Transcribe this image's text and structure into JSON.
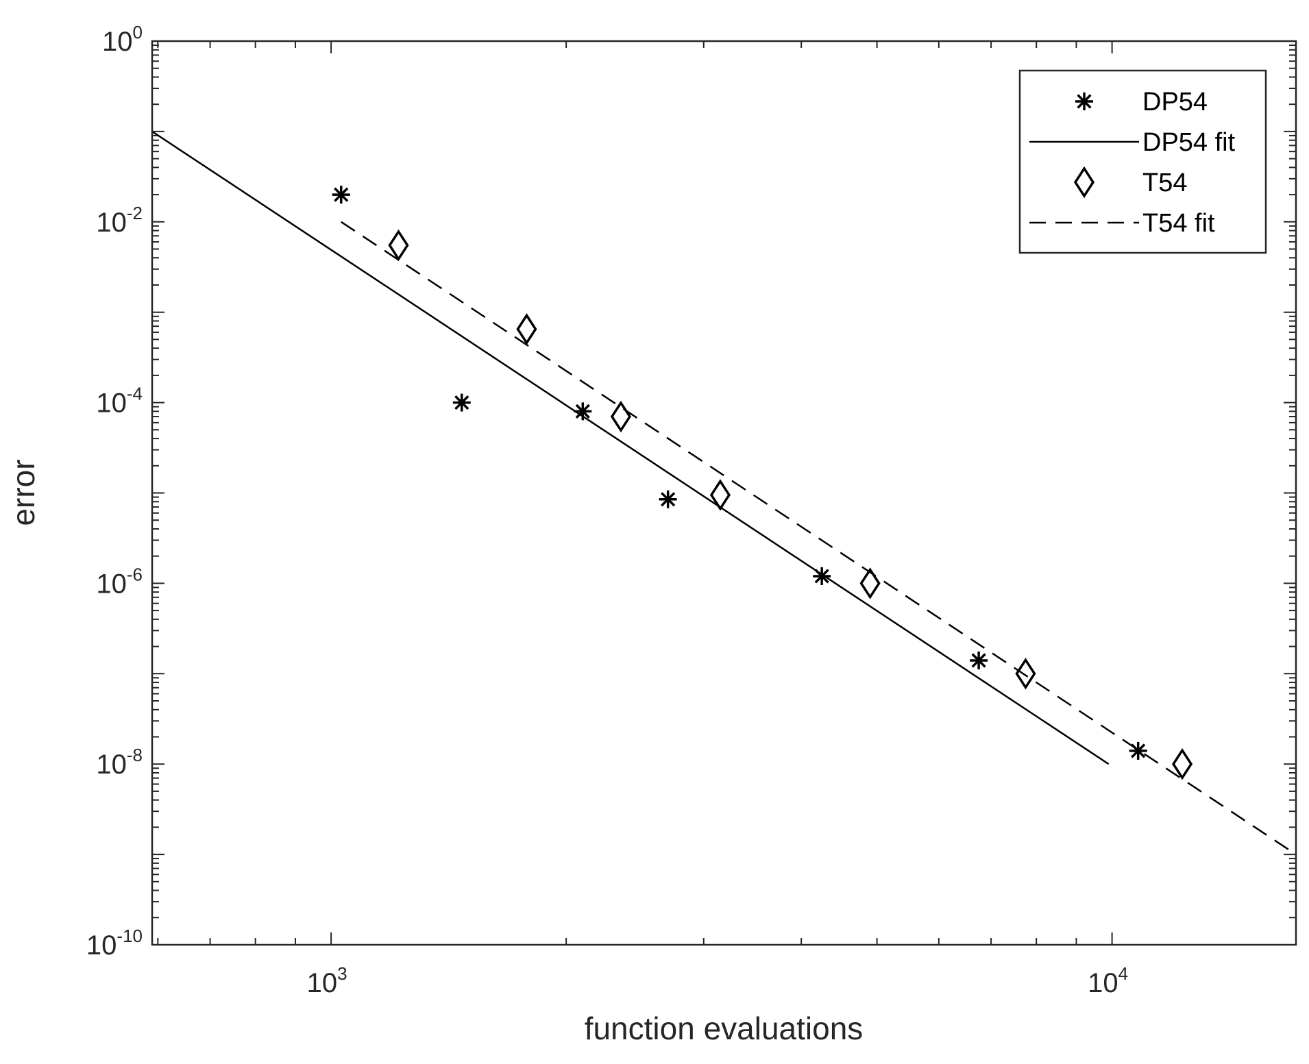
{
  "chart_data": {
    "type": "scatter",
    "title": "",
    "xlabel": "function evaluations",
    "ylabel": "error",
    "xscale": "log",
    "yscale": "log",
    "xlim": [
      590,
      17200
    ],
    "ylim": [
      1e-10,
      1
    ],
    "x_ticks": [
      {
        "base": "10",
        "exp": "3",
        "value": 1000
      },
      {
        "base": "10",
        "exp": "4",
        "value": 10000
      }
    ],
    "y_ticks": [
      {
        "base": "10",
        "exp": "0",
        "value": 1
      },
      {
        "base": "10",
        "exp": "-2",
        "value": 0.01
      },
      {
        "base": "10",
        "exp": "-4",
        "value": 0.0001
      },
      {
        "base": "10",
        "exp": "-6",
        "value": 1e-06
      },
      {
        "base": "10",
        "exp": "-8",
        "value": 1e-08
      },
      {
        "base": "10",
        "exp": "-10",
        "value": 1e-10
      }
    ],
    "grid": false,
    "box": true,
    "legend_position": "top-right",
    "series": [
      {
        "name": "DP54",
        "style": "markers",
        "marker": "asterisk",
        "color": "#000000",
        "points": [
          {
            "x": 1030,
            "y": 0.02
          },
          {
            "x": 1470,
            "y": 0.0001
          },
          {
            "x": 2100,
            "y": 8e-05
          },
          {
            "x": 2700,
            "y": 8.5e-06
          },
          {
            "x": 4250,
            "y": 1.2e-06
          },
          {
            "x": 6750,
            "y": 1.4e-07
          },
          {
            "x": 10800,
            "y": 1.4e-08
          }
        ]
      },
      {
        "name": "DP54 fit",
        "style": "line",
        "line": "solid",
        "color": "#000000",
        "points": [
          {
            "x": 590,
            "y": 0.1
          },
          {
            "x": 9900,
            "y": 1e-08
          }
        ]
      },
      {
        "name": "T54",
        "style": "markers",
        "marker": "diamond",
        "color": "#000000",
        "points": [
          {
            "x": 1220,
            "y": 0.0055
          },
          {
            "x": 1780,
            "y": 0.00065
          },
          {
            "x": 2350,
            "y": 7e-05
          },
          {
            "x": 3150,
            "y": 9.5e-06
          },
          {
            "x": 4900,
            "y": 1e-06
          },
          {
            "x": 7750,
            "y": 1e-07
          },
          {
            "x": 12300,
            "y": 1e-08
          }
        ]
      },
      {
        "name": "T54 fit",
        "style": "line",
        "line": "dashed",
        "color": "#000000",
        "points": [
          {
            "x": 1030,
            "y": 0.01
          },
          {
            "x": 17200,
            "y": 1e-09
          }
        ]
      }
    ]
  }
}
